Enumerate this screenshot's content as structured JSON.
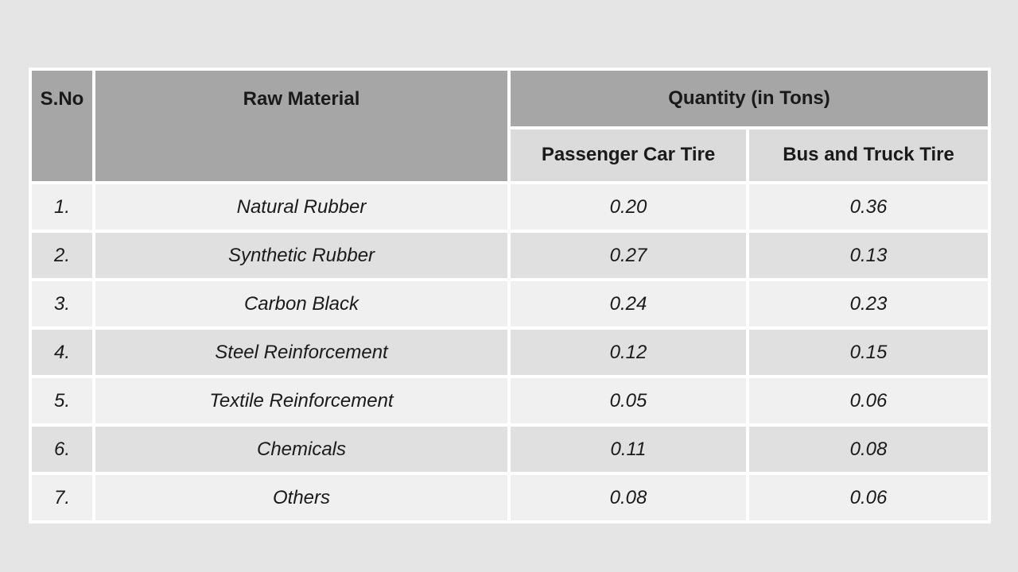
{
  "page": {
    "background": "#e5e5e5"
  },
  "colors": {
    "header_bg": "#a6a6a6",
    "subheader_bg": "#dbdbdb",
    "row_odd": "#f0f0f0",
    "row_even": "#e0e0e0",
    "gap": "#ffffff",
    "text": "#1a1a1a"
  },
  "table": {
    "headers": {
      "sno": "S.No",
      "raw_material": "Raw Material",
      "quantity_group": "Quantity (in Tons)",
      "passenger": "Passenger Car Tire",
      "bus_truck": "Bus and Truck Tire"
    },
    "rows": [
      {
        "sno": "1.",
        "material": "Natural Rubber",
        "passenger": "0.20",
        "bus_truck": "0.36"
      },
      {
        "sno": "2.",
        "material": "Synthetic Rubber",
        "passenger": "0.27",
        "bus_truck": "0.13"
      },
      {
        "sno": "3.",
        "material": "Carbon Black",
        "passenger": "0.24",
        "bus_truck": "0.23"
      },
      {
        "sno": "4.",
        "material": "Steel Reinforcement",
        "passenger": "0.12",
        "bus_truck": "0.15"
      },
      {
        "sno": "5.",
        "material": "Textile Reinforcement",
        "passenger": "0.05",
        "bus_truck": "0.06"
      },
      {
        "sno": "6.",
        "material": "Chemicals",
        "passenger": "0.11",
        "bus_truck": "0.08"
      },
      {
        "sno": "7.",
        "material": "Others",
        "passenger": "0.08",
        "bus_truck": "0.06"
      }
    ]
  },
  "chart_data": {
    "type": "table",
    "title": "Quantity (in Tons)",
    "categories": [
      "Natural Rubber",
      "Synthetic Rubber",
      "Carbon Black",
      "Steel Reinforcement",
      "Textile Reinforcement",
      "Chemicals",
      "Others"
    ],
    "series": [
      {
        "name": "Passenger Car Tire",
        "values": [
          0.2,
          0.27,
          0.24,
          0.12,
          0.05,
          0.11,
          0.08
        ]
      },
      {
        "name": "Bus and Truck Tire",
        "values": [
          0.36,
          0.13,
          0.23,
          0.15,
          0.06,
          0.08,
          0.06
        ]
      }
    ]
  }
}
